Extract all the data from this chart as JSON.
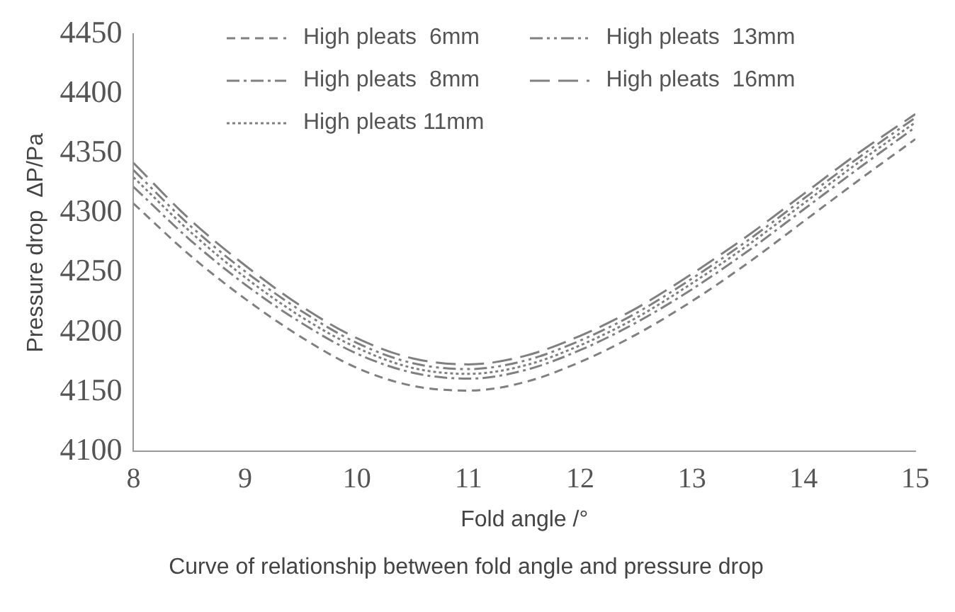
{
  "chart_data": {
    "type": "line",
    "title": "Curve of relationship between fold angle and pressure drop",
    "xlabel": "Fold angle /°",
    "ylabel": "Pressure drop  ΔP/Pa",
    "x": [
      8,
      8.5,
      9,
      9.5,
      10,
      10.5,
      11,
      11.5,
      12,
      12.5,
      13,
      13.5,
      14,
      14.5,
      15
    ],
    "xlim": [
      8,
      15
    ],
    "xticks": [
      8,
      9,
      10,
      11,
      12,
      13,
      14,
      15
    ],
    "ylim": [
      4100,
      4450
    ],
    "yticks": [
      4100,
      4150,
      4200,
      4250,
      4300,
      4350,
      4400,
      4450
    ],
    "grid": false,
    "legend": "top",
    "marker": "none",
    "series": [
      {
        "name": "High pleats  6mm",
        "color": "#808080",
        "line_style": "dashed",
        "values": [
          4308,
          4265,
          4228,
          4196,
          4170,
          4155,
          4151,
          4158,
          4175,
          4198,
          4226,
          4258,
          4293,
          4328,
          4362
        ]
      },
      {
        "name": "High pleats  8mm",
        "color": "#808080",
        "line_style": "dashed",
        "values": [
          4322,
          4278,
          4240,
          4208,
          4182,
          4166,
          4161,
          4168,
          4185,
          4208,
          4236,
          4268,
          4303,
          4338,
          4372
        ]
      },
      {
        "name": "High pleats 11mm",
        "color": "#808080",
        "line_style": "dotted",
        "values": [
          4330,
          4285,
          4246,
          4213,
          4187,
          4170,
          4165,
          4172,
          4189,
          4212,
          4241,
          4273,
          4308,
          4343,
          4376
        ]
      },
      {
        "name": "High pleats  13mm",
        "color": "#808080",
        "line_style": "dashed",
        "values": [
          4336,
          4290,
          4251,
          4218,
          4191,
          4174,
          4169,
          4176,
          4193,
          4216,
          4245,
          4277,
          4312,
          4347,
          4380
        ]
      },
      {
        "name": "High pleats  16mm",
        "color": "#808080",
        "line_style": "dashed",
        "values": [
          4342,
          4295,
          4256,
          4222,
          4195,
          4178,
          4173,
          4180,
          4197,
          4220,
          4249,
          4281,
          4316,
          4351,
          4383
        ]
      }
    ]
  }
}
